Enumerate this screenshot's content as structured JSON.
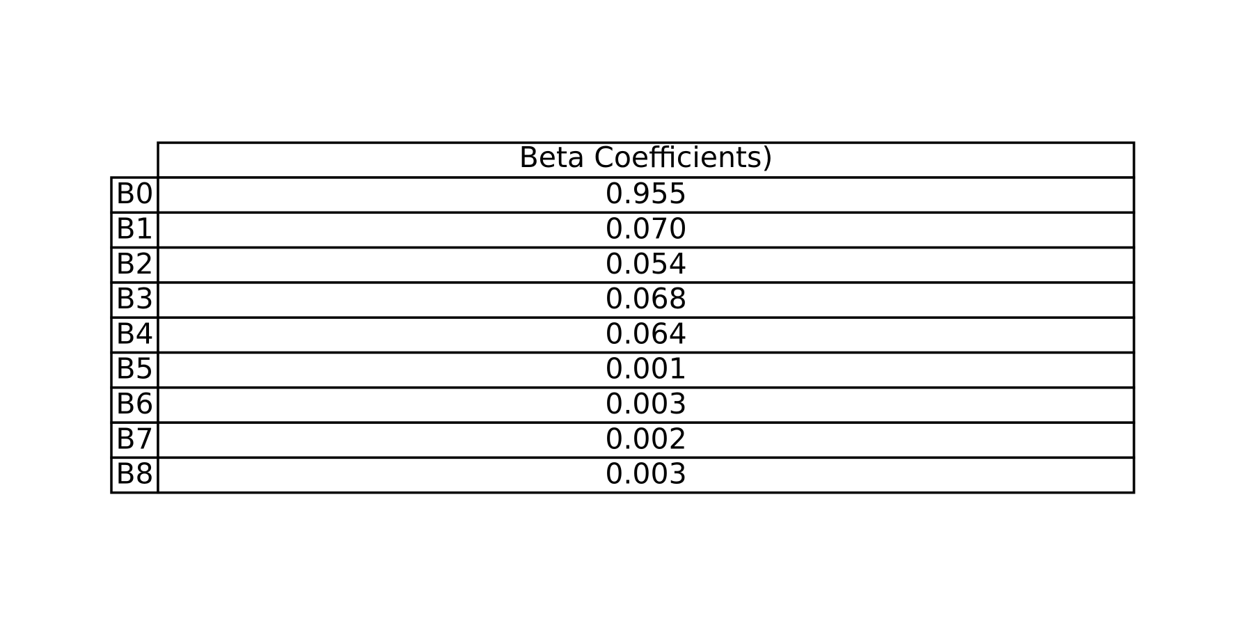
{
  "chart_data": {
    "type": "table",
    "column_header": "Beta Coefficients)",
    "rows": [
      {
        "label": "B0",
        "value": "0.955"
      },
      {
        "label": "B1",
        "value": "0.070"
      },
      {
        "label": "B2",
        "value": "0.054"
      },
      {
        "label": "B3",
        "value": "0.068"
      },
      {
        "label": "B4",
        "value": "0.064"
      },
      {
        "label": "B5",
        "value": "0.001"
      },
      {
        "label": "B6",
        "value": "0.003"
      },
      {
        "label": "B7",
        "value": "0.002"
      },
      {
        "label": "B8",
        "value": "0.003"
      }
    ]
  }
}
